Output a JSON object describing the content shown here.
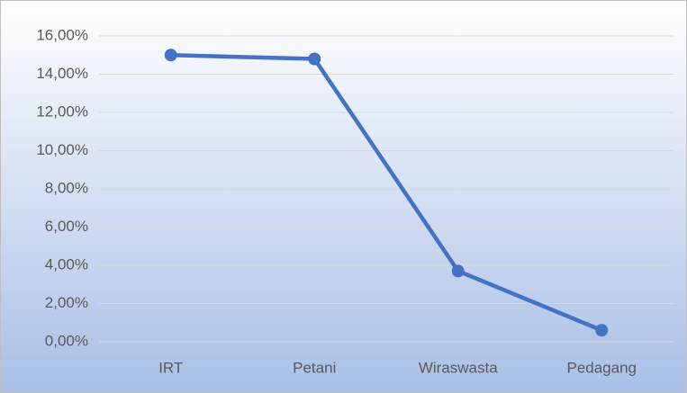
{
  "chart_data": {
    "type": "line",
    "categories": [
      "IRT",
      "Petani",
      "Wiraswasta",
      "Pedagang"
    ],
    "values": [
      15.0,
      14.8,
      3.7,
      0.6
    ],
    "color": "#4472c4",
    "ylim": [
      0,
      16
    ],
    "yticks": [
      {
        "value": 0,
        "label": "0,00%"
      },
      {
        "value": 2,
        "label": "2,00%"
      },
      {
        "value": 4,
        "label": "4,00%"
      },
      {
        "value": 6,
        "label": "6,00%"
      },
      {
        "value": 8,
        "label": "8,00%"
      },
      {
        "value": 10,
        "label": "10,00%"
      },
      {
        "value": 12,
        "label": "12,00%"
      },
      {
        "value": 14,
        "label": "14,00%"
      },
      {
        "value": 16,
        "label": "16,00%"
      }
    ],
    "grid": true
  }
}
